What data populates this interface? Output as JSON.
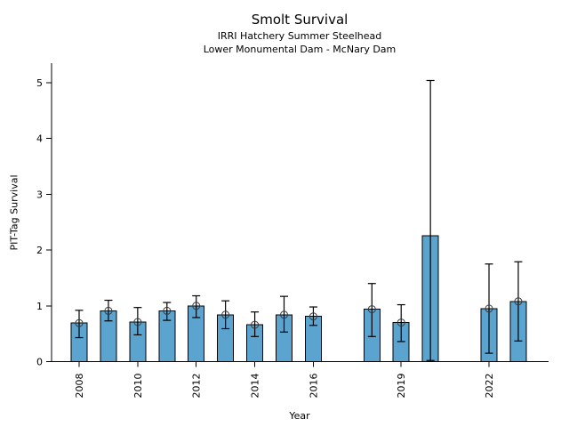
{
  "chart_data": {
    "type": "bar",
    "title": "Smolt Survival",
    "subtitle1": "IRRI Hatchery Summer Steelhead",
    "subtitle2": "Lower Monumental Dam - McNary Dam",
    "xlabel": "Year",
    "ylabel": "PIT-Tag Survival",
    "x_ticks": [
      2008,
      2010,
      2012,
      2014,
      2016,
      2019,
      2022
    ],
    "y_ticks": [
      0,
      1,
      2,
      3,
      4,
      5
    ],
    "xlim": [
      2007.1,
      2024.0
    ],
    "ylim": [
      0,
      5.35
    ],
    "missing_years": [
      2017,
      2021
    ],
    "grid": false,
    "legend": "none",
    "bar_color": "#5BA4CF",
    "bar_edge_color": "#000000",
    "error_color": "#000000",
    "marker_style": "open-circle",
    "points": [
      {
        "year": 2008,
        "value": 0.69,
        "err_low": 0.43,
        "err_high": 0.92,
        "marker": true
      },
      {
        "year": 2009,
        "value": 0.91,
        "err_low": 0.73,
        "err_high": 1.1,
        "marker": true
      },
      {
        "year": 2010,
        "value": 0.71,
        "err_low": 0.48,
        "err_high": 0.97,
        "marker": true
      },
      {
        "year": 2011,
        "value": 0.91,
        "err_low": 0.74,
        "err_high": 1.06,
        "marker": true
      },
      {
        "year": 2012,
        "value": 1.0,
        "err_low": 0.79,
        "err_high": 1.18,
        "marker": true
      },
      {
        "year": 2013,
        "value": 0.84,
        "err_low": 0.59,
        "err_high": 1.09,
        "marker": true
      },
      {
        "year": 2014,
        "value": 0.66,
        "err_low": 0.45,
        "err_high": 0.89,
        "marker": true
      },
      {
        "year": 2015,
        "value": 0.84,
        "err_low": 0.53,
        "err_high": 1.17,
        "marker": true
      },
      {
        "year": 2016,
        "value": 0.81,
        "err_low": 0.65,
        "err_high": 0.98,
        "marker": true
      },
      {
        "year": 2018,
        "value": 0.94,
        "err_low": 0.45,
        "err_high": 1.4,
        "marker": true
      },
      {
        "year": 2019,
        "value": 0.7,
        "err_low": 0.36,
        "err_high": 1.02,
        "marker": true
      },
      {
        "year": 2020,
        "value": 2.26,
        "err_low": 0.02,
        "err_high": 5.04,
        "marker": false
      },
      {
        "year": 2022,
        "value": 0.95,
        "err_low": 0.15,
        "err_high": 1.75,
        "marker": true
      },
      {
        "year": 2023,
        "value": 1.08,
        "err_low": 0.37,
        "err_high": 1.79,
        "marker": true
      }
    ]
  }
}
